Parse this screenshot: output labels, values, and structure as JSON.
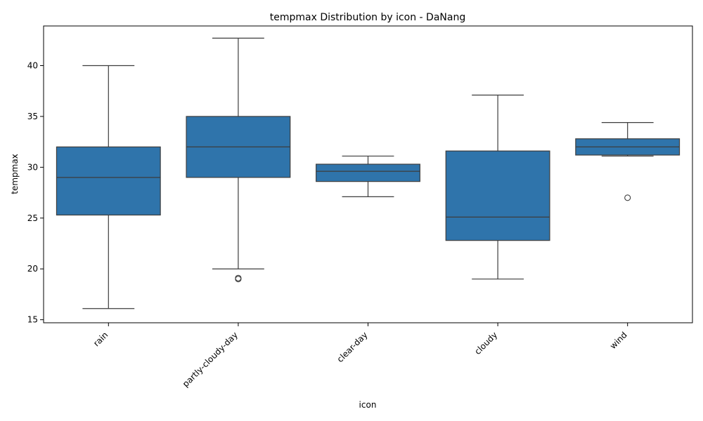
{
  "chart_data": {
    "type": "box",
    "title": "tempmax Distribution by icon - DaNang",
    "xlabel": "icon",
    "ylabel": "tempmax",
    "categories": [
      "rain",
      "partly-cloudy-day",
      "clear-day",
      "cloudy",
      "wind"
    ],
    "yticks": [
      15,
      20,
      25,
      30,
      35,
      40
    ],
    "ylim": [
      14.7,
      43.9
    ],
    "grid": false,
    "box_color": "#2f74ab",
    "line_color": "#3d3d3d",
    "boxes": [
      {
        "category": "rain",
        "whisker_low": 16.1,
        "q1": 25.3,
        "median": 29.0,
        "q3": 32.0,
        "whisker_high": 40.0,
        "outliers": []
      },
      {
        "category": "partly-cloudy-day",
        "whisker_low": 20.0,
        "q1": 29.0,
        "median": 32.0,
        "q3": 35.0,
        "whisker_high": 42.7,
        "outliers": [
          19.0,
          19.1
        ]
      },
      {
        "category": "clear-day",
        "whisker_low": 27.1,
        "q1": 28.6,
        "median": 29.6,
        "q3": 30.3,
        "whisker_high": 31.1,
        "outliers": []
      },
      {
        "category": "cloudy",
        "whisker_low": 19.0,
        "q1": 22.8,
        "median": 25.1,
        "q3": 31.6,
        "whisker_high": 37.1,
        "outliers": []
      },
      {
        "category": "wind",
        "whisker_low": 31.1,
        "q1": 31.2,
        "median": 32.0,
        "q3": 32.8,
        "whisker_high": 34.4,
        "outliers": [
          27.0
        ]
      }
    ]
  }
}
